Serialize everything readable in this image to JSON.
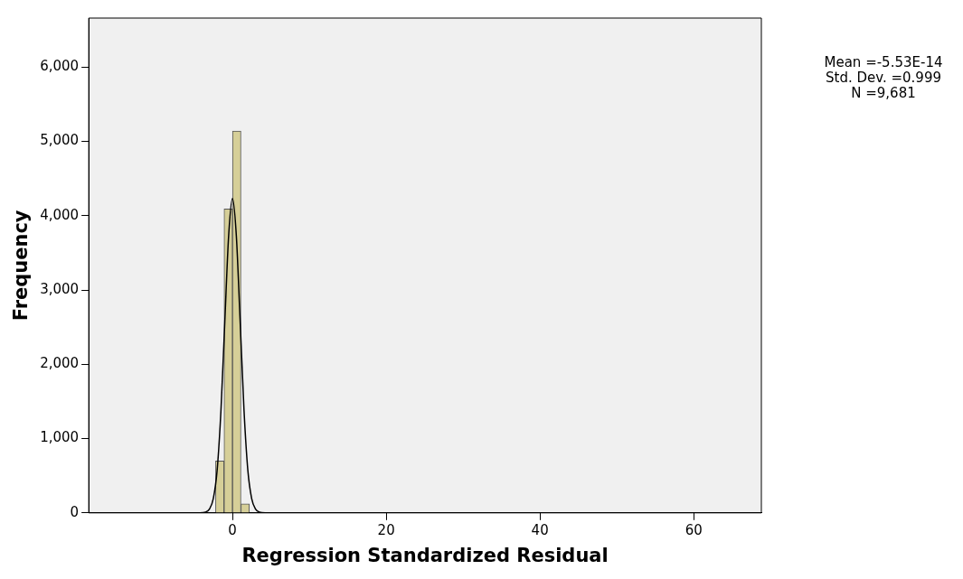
{
  "chart_data": {
    "type": "histogram",
    "xlabel": "Regression Standardized Residual",
    "ylabel": "Frequency",
    "bins": [
      -2.2,
      -1.1,
      0,
      1.1,
      2.2
    ],
    "values": [
      700,
      4090,
      5140,
      120
    ],
    "color": "#d6cf98",
    "series": [
      {
        "type": "line",
        "color": "#000000",
        "x": [
          -4.5,
          -3.5,
          -3,
          -2.5,
          -2,
          -1.5,
          -1,
          -0.5,
          0,
          0.5,
          1,
          1.5,
          2,
          2.5,
          3,
          3.5,
          4.5
        ],
        "values": [
          0,
          10,
          50,
          190,
          570,
          1380,
          2570,
          3730,
          4230,
          3730,
          2570,
          1380,
          570,
          190,
          50,
          10,
          0
        ]
      }
    ],
    "xlim": [
      -18.7,
      68.8
    ],
    "xticks": [
      0,
      20,
      40,
      60
    ],
    "ylim": [
      0,
      6660
    ],
    "yticks": [
      {
        "value": 0,
        "label": "0"
      },
      {
        "value": 1000,
        "label": "1,000"
      },
      {
        "value": 2000,
        "label": "2,000"
      },
      {
        "value": 3000,
        "label": "3,000"
      },
      {
        "value": 4000,
        "label": "4,000"
      },
      {
        "value": 5000,
        "label": "5,000"
      },
      {
        "value": 6000,
        "label": "6,000"
      }
    ],
    "annotations": [
      "Mean =-5.53E-14",
      "Std. Dev. =0.999",
      "N =9,681"
    ],
    "grid": false,
    "legend": false,
    "marker": "none"
  }
}
